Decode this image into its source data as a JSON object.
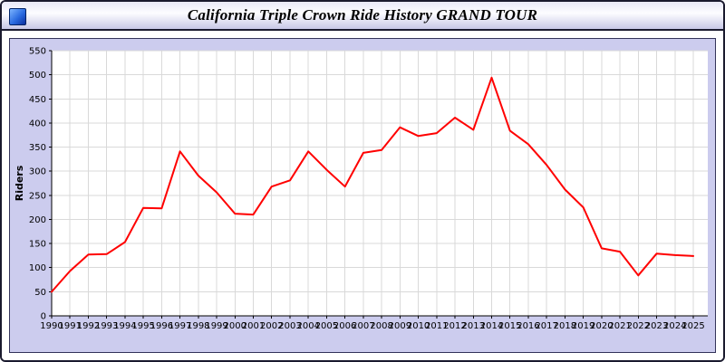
{
  "window": {
    "title": "California Triple Crown Ride History GRAND TOUR"
  },
  "chart_data": {
    "type": "line",
    "title": "California Triple Crown Ride History GRAND TOUR",
    "xlabel": "",
    "ylabel": "Riders",
    "ylim": [
      0,
      550
    ],
    "ytick_step": 50,
    "grid": true,
    "legend": "none",
    "categories": [
      1990,
      1991,
      1992,
      1993,
      1994,
      1995,
      1996,
      1997,
      1998,
      1999,
      2000,
      2001,
      2002,
      2003,
      2004,
      2005,
      2006,
      2007,
      2008,
      2009,
      2010,
      2011,
      2012,
      2013,
      2014,
      2015,
      2016,
      2017,
      2018,
      2019,
      2020,
      2021,
      2022,
      2023,
      2024,
      2025
    ],
    "series": [
      {
        "name": "GRAND TOUR Riders",
        "color": "#ff0000",
        "values": [
          50,
          93,
          127,
          128,
          153,
          224,
          223,
          341,
          291,
          256,
          212,
          210,
          268,
          281,
          341,
          303,
          268,
          338,
          344,
          391,
          373,
          379,
          411,
          386,
          494,
          384,
          356,
          313,
          262,
          225,
          140,
          133,
          84,
          129,
          126,
          124
        ]
      }
    ],
    "plot_bg": "#ffffff",
    "panel_bg": "#ccccee",
    "grid_color": "#d9d9d9",
    "axis_color": "#000000",
    "label_color": "#000000"
  }
}
